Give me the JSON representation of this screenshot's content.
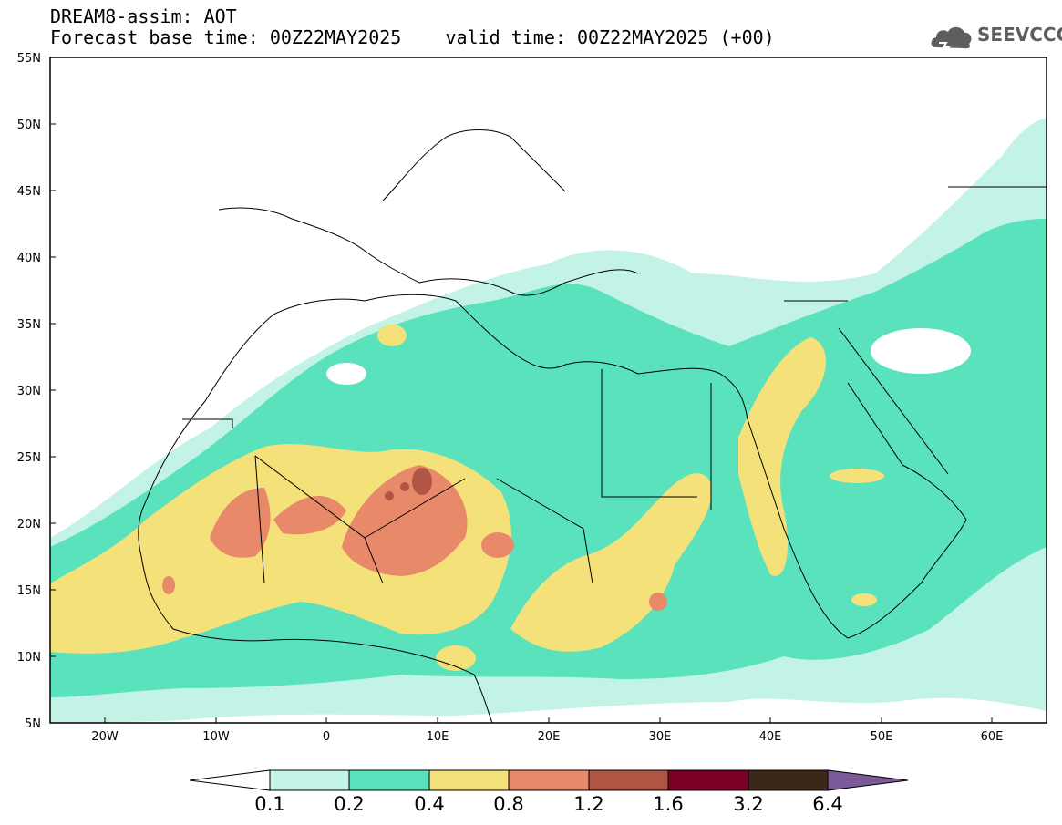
{
  "title": {
    "line1": "DREAM8-assim: AOT",
    "line2": "Forecast base time: 00Z22MAY2025    valid time: 00Z22MAY2025 (+00)"
  },
  "logo": {
    "text": "SEEVCCC",
    "icon": "cloud-logo-icon"
  },
  "axes": {
    "lat_labels": [
      "55N",
      "50N",
      "45N",
      "40N",
      "35N",
      "30N",
      "25N",
      "20N",
      "15N",
      "10N",
      "5N"
    ],
    "lon_labels": [
      "20W",
      "10W",
      "0",
      "10E",
      "20E",
      "30E",
      "40E",
      "50E",
      "60E"
    ],
    "lon_range": [
      -25,
      65
    ],
    "lat_range": [
      5,
      55
    ]
  },
  "colorbar": {
    "labels": [
      "0.1",
      "0.2",
      "0.4",
      "0.8",
      "1.2",
      "1.6",
      "3.2",
      "6.4"
    ],
    "colors": [
      "#ffffff",
      "#c3f2e6",
      "#5ae2bd",
      "#f5e17a",
      "#e88a6a",
      "#b05443",
      "#7a0026",
      "#3b2818",
      "#7c5a99"
    ]
  },
  "colors": {
    "c1": "#c3f2e6",
    "c2": "#5ae2bd",
    "c3": "#f5e17a",
    "c4": "#e88a6a",
    "c5": "#b05443"
  }
}
